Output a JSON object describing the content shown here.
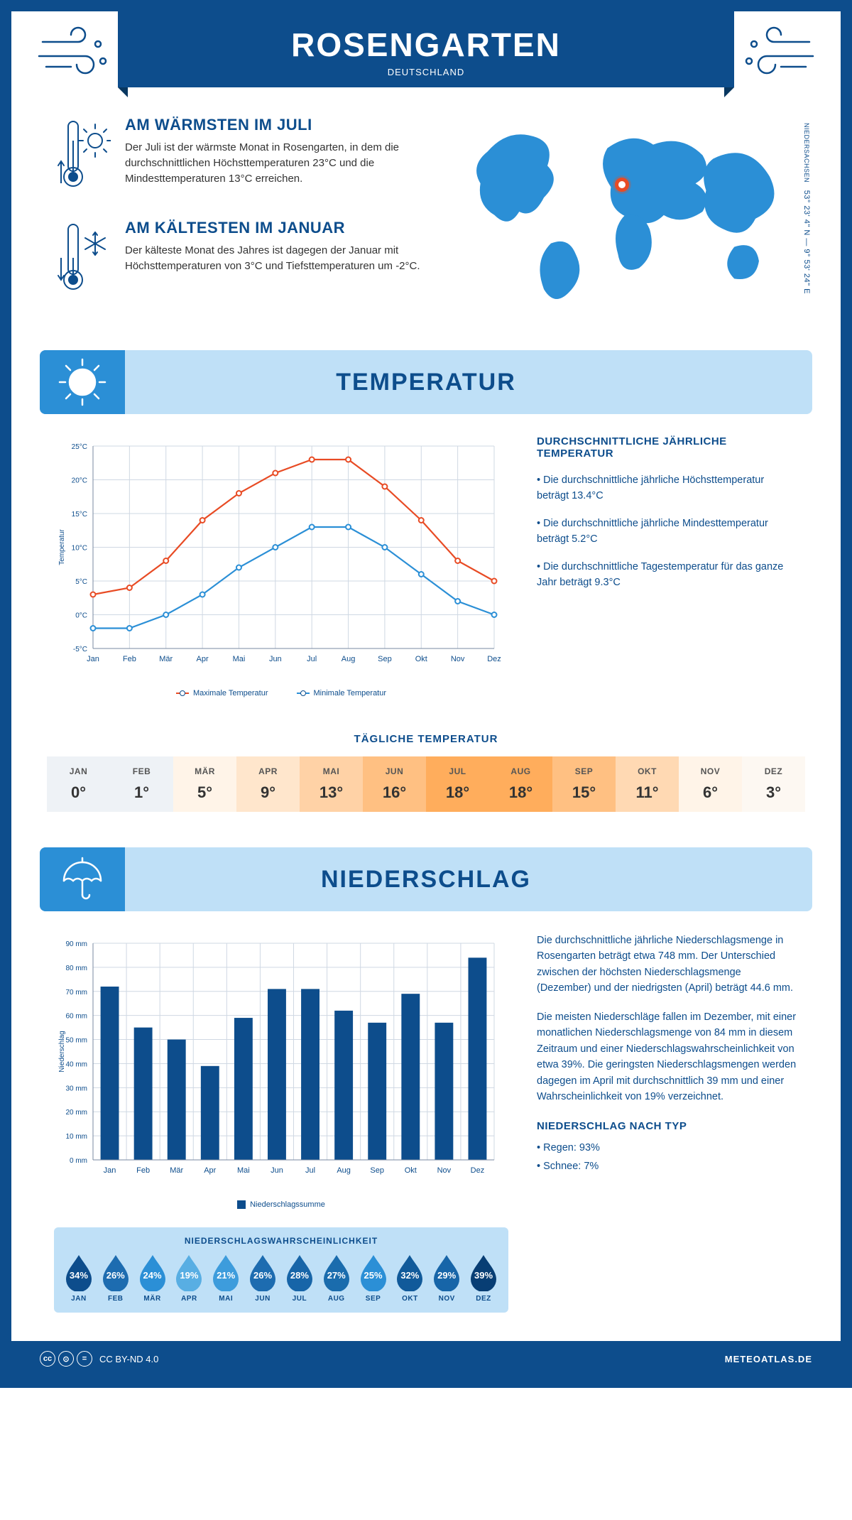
{
  "header": {
    "city": "ROSENGARTEN",
    "country": "DEUTSCHLAND"
  },
  "coords": {
    "lat": "53° 23' 4\" N",
    "lon": "9° 53' 24\" E",
    "region": "NIEDERSACHSEN"
  },
  "marker_pos": {
    "left_pct": 48,
    "top_pct": 30
  },
  "colors": {
    "primary": "#0d4d8c",
    "accent_bg": "#bfe0f7",
    "accent_mid": "#2b8fd6",
    "line_max": "#e84b24",
    "line_min": "#2b8fd6",
    "grid": "#cfd8e3",
    "map": "#2b8fd6"
  },
  "facts": {
    "warm": {
      "title": "AM WÄRMSTEN IM JULI",
      "text": "Der Juli ist der wärmste Monat in Rosengarten, in dem die durchschnittlichen Höchsttemperaturen 23°C und die Mindesttemperaturen 13°C erreichen."
    },
    "cold": {
      "title": "AM KÄLTESTEN IM JANUAR",
      "text": "Der kälteste Monat des Jahres ist dagegen der Januar mit Höchsttemperaturen von 3°C und Tiefsttemperaturen um -2°C."
    }
  },
  "temperature": {
    "section_title": "TEMPERATUR",
    "chart": {
      "months": [
        "Jan",
        "Feb",
        "Mär",
        "Apr",
        "Mai",
        "Jun",
        "Jul",
        "Aug",
        "Sep",
        "Okt",
        "Nov",
        "Dez"
      ],
      "max": [
        3,
        4,
        8,
        14,
        18,
        21,
        23,
        23,
        19,
        14,
        8,
        5
      ],
      "min": [
        -2,
        -2,
        0,
        3,
        7,
        10,
        13,
        13,
        10,
        6,
        2,
        0
      ],
      "ymin": -5,
      "ymax": 25,
      "ystep": 5,
      "yunit": "°C",
      "ylabel": "Temperatur",
      "legend_max": "Maximale Temperatur",
      "legend_min": "Minimale Temperatur",
      "line_width": 2.2,
      "marker_r": 3.5
    },
    "text": {
      "title": "DURCHSCHNITTLICHE JÄHRLICHE TEMPERATUR",
      "b1": "• Die durchschnittliche jährliche Höchsttemperatur beträgt 13.4°C",
      "b2": "• Die durchschnittliche jährliche Mindesttemperatur beträgt 5.2°C",
      "b3": "• Die durchschnittliche Tagestemperatur für das ganze Jahr beträgt 9.3°C"
    },
    "daily": {
      "title": "TÄGLICHE TEMPERATUR",
      "months": [
        "JAN",
        "FEB",
        "MÄR",
        "APR",
        "MAI",
        "JUN",
        "JUL",
        "AUG",
        "SEP",
        "OKT",
        "NOV",
        "DEZ"
      ],
      "values": [
        "0°",
        "1°",
        "5°",
        "9°",
        "13°",
        "16°",
        "18°",
        "18°",
        "15°",
        "11°",
        "6°",
        "3°"
      ],
      "bg": [
        "#eef2f6",
        "#eef2f6",
        "#fff4e8",
        "#ffe6cc",
        "#ffd2a6",
        "#ffc082",
        "#ffad5c",
        "#ffad5c",
        "#ffc082",
        "#ffd9b3",
        "#fff4e8",
        "#fdf8f2"
      ]
    }
  },
  "precipitation": {
    "section_title": "NIEDERSCHLAG",
    "chart": {
      "months": [
        "Jan",
        "Feb",
        "Mär",
        "Apr",
        "Mai",
        "Jun",
        "Jul",
        "Aug",
        "Sep",
        "Okt",
        "Nov",
        "Dez"
      ],
      "values": [
        72,
        55,
        50,
        39,
        59,
        71,
        71,
        62,
        57,
        69,
        57,
        84
      ],
      "ymin": 0,
      "ymax": 90,
      "ystep": 10,
      "yunit": " mm",
      "ylabel": "Niederschlag",
      "legend": "Niederschlagssumme",
      "bar_color": "#0d4d8c",
      "bar_width_ratio": 0.55
    },
    "text": {
      "p1": "Die durchschnittliche jährliche Niederschlagsmenge in Rosengarten beträgt etwa 748 mm. Der Unterschied zwischen der höchsten Niederschlagsmenge (Dezember) und der niedrigsten (April) beträgt 44.6 mm.",
      "p2": "Die meisten Niederschläge fallen im Dezember, mit einer monatlichen Niederschlagsmenge von 84 mm in diesem Zeitraum und einer Niederschlagswahrscheinlichkeit von etwa 39%. Die geringsten Niederschlagsmengen werden dagegen im April mit durchschnittlich 39 mm und einer Wahrscheinlichkeit von 19% verzeichnet.",
      "type_title": "NIEDERSCHLAG NACH TYP",
      "type1": "• Regen: 93%",
      "type2": "• Schnee: 7%"
    },
    "probability": {
      "title": "NIEDERSCHLAGSWAHRSCHEINLICHKEIT",
      "months": [
        "JAN",
        "FEB",
        "MÄR",
        "APR",
        "MAI",
        "JUN",
        "JUL",
        "AUG",
        "SEP",
        "OKT",
        "NOV",
        "DEZ"
      ],
      "values": [
        "34%",
        "26%",
        "24%",
        "19%",
        "21%",
        "26%",
        "28%",
        "27%",
        "25%",
        "32%",
        "29%",
        "39%"
      ],
      "colors": [
        "#0d4d8c",
        "#1d6cb0",
        "#2b8fd6",
        "#58aee3",
        "#3d9cdc",
        "#1d6cb0",
        "#1765a8",
        "#1a6cad",
        "#2b8fd6",
        "#115a9a",
        "#1765a8",
        "#083e74"
      ]
    }
  },
  "footer": {
    "license": "CC BY-ND 4.0",
    "site": "METEOATLAS.DE"
  }
}
